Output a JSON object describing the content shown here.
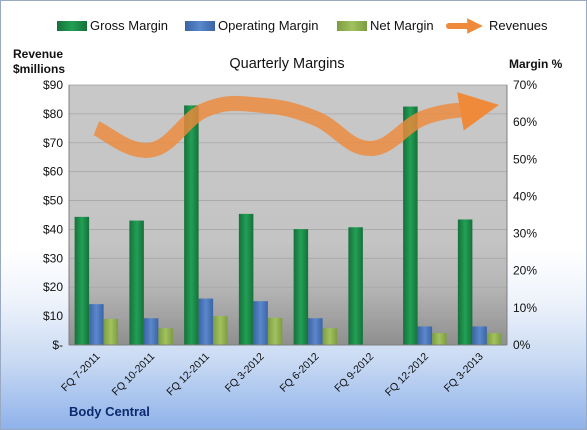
{
  "chart_data": {
    "type": "bar",
    "title": "Quarterly Margins",
    "company": "Body Central",
    "left_axis_label_line1": "Revenue",
    "left_axis_label_line2": "$millions",
    "right_axis_label": "Margin %",
    "categories": [
      "FQ 7-2011",
      "FQ 10-2011",
      "FQ 12-2011",
      "FQ 3-2012",
      "FQ 6-2012",
      "FQ 9-2012",
      "FQ 12-2012",
      "FQ 3-2013"
    ],
    "left_ylim": [
      0,
      90
    ],
    "right_ylim": [
      0,
      70
    ],
    "left_ticks": [
      "$-",
      "$10",
      "$20",
      "$30",
      "$40",
      "$50",
      "$60",
      "$70",
      "$80",
      "$90"
    ],
    "right_ticks": [
      "0%",
      "10%",
      "20%",
      "30%",
      "40%",
      "50%",
      "60%",
      "70%"
    ],
    "series": [
      {
        "name": "Gross Margin",
        "axis": "right",
        "color": "#1e8a48",
        "values": [
          34.5,
          33.5,
          64.5,
          35.3,
          31.2,
          31.7,
          64.2,
          33.8
        ]
      },
      {
        "name": "Operating Margin",
        "axis": "right",
        "color": "#4a76b8",
        "values": [
          11.0,
          7.2,
          12.5,
          11.8,
          7.2,
          0,
          5.0,
          5.0
        ]
      },
      {
        "name": "Net Margin",
        "axis": "right",
        "color": "#8faf4f",
        "values": [
          7.0,
          4.5,
          7.8,
          7.3,
          4.5,
          0,
          3.2,
          3.2
        ]
      },
      {
        "name": "Revenues",
        "axis": "left",
        "type": "line",
        "color": "#ee8a3a",
        "values": [
          75.0,
          67.5,
          81.5,
          83.0,
          78.5,
          68.0,
          78.8,
          82.0
        ]
      }
    ],
    "grid": true,
    "legend_position": "top"
  }
}
